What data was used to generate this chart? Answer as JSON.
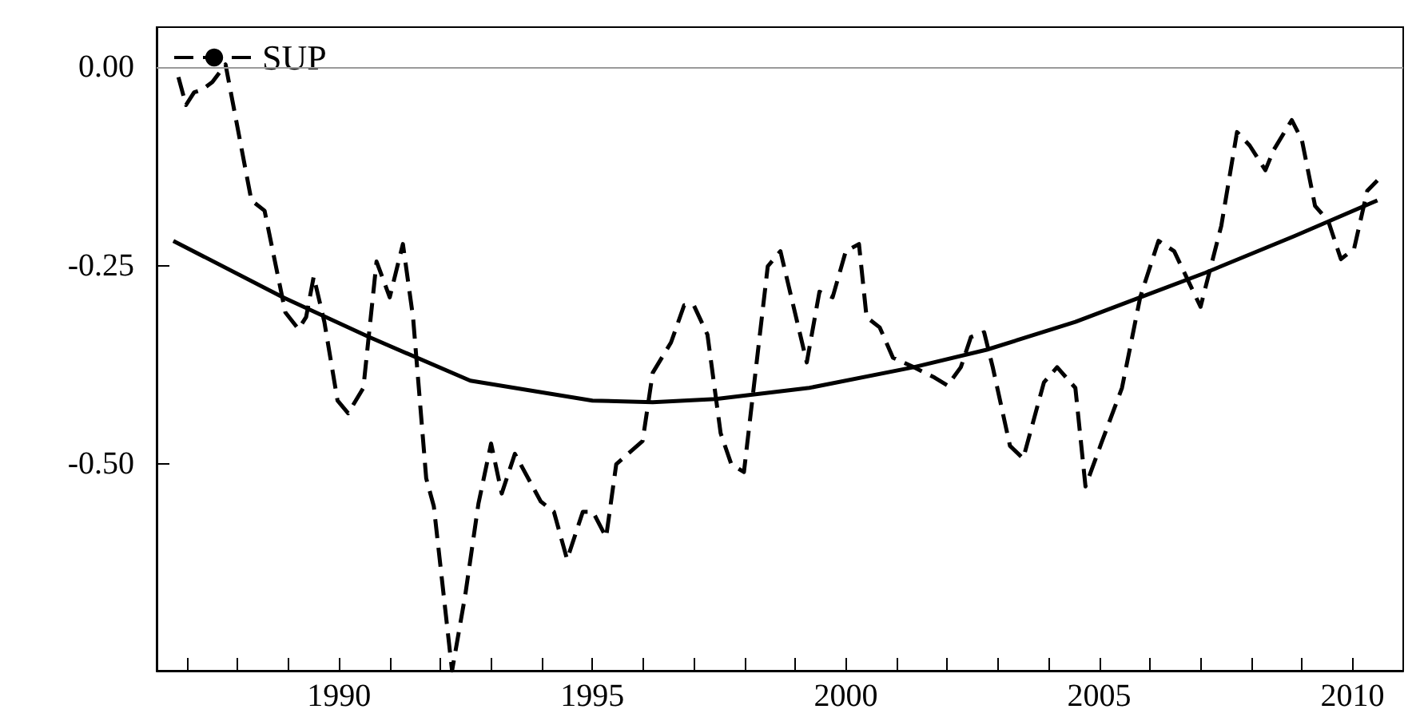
{
  "chart_data": {
    "type": "line",
    "xlim": [
      1986.4,
      2011
    ],
    "ylim": [
      -0.76,
      0.05
    ],
    "xticks": [
      {
        "value": 1987,
        "label": null
      },
      {
        "value": 1988,
        "label": null
      },
      {
        "value": 1989,
        "label": null
      },
      1990,
      {
        "value": 1991,
        "label": null
      },
      {
        "value": 1992,
        "label": null
      },
      {
        "value": 1993,
        "label": null
      },
      {
        "value": 1994,
        "label": null
      },
      1995,
      {
        "value": 1996,
        "label": null
      },
      {
        "value": 1997,
        "label": null
      },
      {
        "value": 1998,
        "label": null
      },
      {
        "value": 1999,
        "label": null
      },
      2000,
      {
        "value": 2001,
        "label": null
      },
      {
        "value": 2002,
        "label": null
      },
      {
        "value": 2003,
        "label": null
      },
      {
        "value": 2004,
        "label": null
      },
      2005,
      {
        "value": 2006,
        "label": null
      },
      {
        "value": 2007,
        "label": null
      },
      {
        "value": 2008,
        "label": null
      },
      {
        "value": 2009,
        "label": null
      },
      2010
    ],
    "yticks": [
      {
        "value": -0.5,
        "label": "-0.50"
      },
      {
        "value": -0.25,
        "label": "-0.25"
      },
      {
        "value": 0,
        "label": "0.00"
      }
    ],
    "grid": false,
    "legend": "top left",
    "marker": "none",
    "ref_lines": [
      {
        "axis": "y",
        "value": 0,
        "color": "#9a9a9a"
      }
    ],
    "series": [
      {
        "name": "SUP",
        "color": "#000000",
        "line_style": "dashed",
        "x": [
          1986.83,
          1986.98,
          1987.14,
          1987.29,
          1987.5,
          1987.76,
          1988.27,
          1988.53,
          1988.94,
          1989.2,
          1989.35,
          1989.5,
          1989.71,
          1989.97,
          1990.18,
          1990.48,
          1990.74,
          1991.0,
          1991.26,
          1991.46,
          1991.72,
          1991.87,
          1992.23,
          1992.49,
          1992.75,
          1993.0,
          1993.21,
          1993.47,
          1993.98,
          1994.24,
          1994.5,
          1994.81,
          1995.01,
          1995.27,
          1995.47,
          1995.99,
          1996.19,
          1996.55,
          1996.81,
          1997.0,
          1997.27,
          1997.53,
          1997.74,
          1997.99,
          1998.46,
          1998.71,
          1999.23,
          1999.48,
          1999.74,
          2000.0,
          2000.26,
          2000.41,
          2000.67,
          2000.93,
          2001.34,
          2001.75,
          2002.01,
          2002.27,
          2002.47,
          2002.73,
          2002.9,
          2003.24,
          2003.5,
          2003.91,
          2004.17,
          2004.53,
          2004.73,
          2005.04,
          2005.45,
          2005.81,
          2006.17,
          2006.48,
          2007.0,
          2007.41,
          2007.72,
          2007.97,
          2008.28,
          2008.44,
          2008.8,
          2009.0,
          2009.26,
          2009.52,
          2009.77,
          2010.03,
          2010.29,
          2010.49
        ],
        "values": [
          -0.013,
          -0.048,
          -0.032,
          -0.029,
          -0.019,
          0.003,
          -0.168,
          -0.181,
          -0.309,
          -0.33,
          -0.315,
          -0.264,
          -0.321,
          -0.42,
          -0.436,
          -0.404,
          -0.245,
          -0.29,
          -0.223,
          -0.315,
          -0.518,
          -0.553,
          -0.76,
          -0.665,
          -0.55,
          -0.474,
          -0.537,
          -0.487,
          -0.547,
          -0.56,
          -0.62,
          -0.56,
          -0.56,
          -0.592,
          -0.5,
          -0.471,
          -0.385,
          -0.347,
          -0.3,
          -0.3,
          -0.337,
          -0.461,
          -0.5,
          -0.51,
          -0.251,
          -0.232,
          -0.372,
          -0.283,
          -0.29,
          -0.232,
          -0.223,
          -0.315,
          -0.328,
          -0.366,
          -0.378,
          -0.391,
          -0.401,
          -0.378,
          -0.34,
          -0.334,
          -0.378,
          -0.477,
          -0.493,
          -0.397,
          -0.378,
          -0.404,
          -0.528,
          -0.474,
          -0.404,
          -0.29,
          -0.219,
          -0.232,
          -0.302,
          -0.2,
          -0.082,
          -0.099,
          -0.13,
          -0.105,
          -0.067,
          -0.092,
          -0.175,
          -0.194,
          -0.242,
          -0.229,
          -0.156,
          -0.143
        ]
      },
      {
        "color": "#000000",
        "line_style": "solid",
        "x": [
          1986.73,
          1988.89,
          1990.59,
          1992.59,
          1995.0,
          1996.19,
          1997.43,
          1999.28,
          2001.34,
          2002.78,
          2004.53,
          2005.81,
          2007.1,
          2008.85,
          2010.49
        ],
        "values": [
          -0.219,
          -0.29,
          -0.34,
          -0.395,
          -0.42,
          -0.422,
          -0.418,
          -0.404,
          -0.378,
          -0.356,
          -0.321,
          -0.29,
          -0.259,
          -0.213,
          -0.168
        ]
      }
    ]
  }
}
